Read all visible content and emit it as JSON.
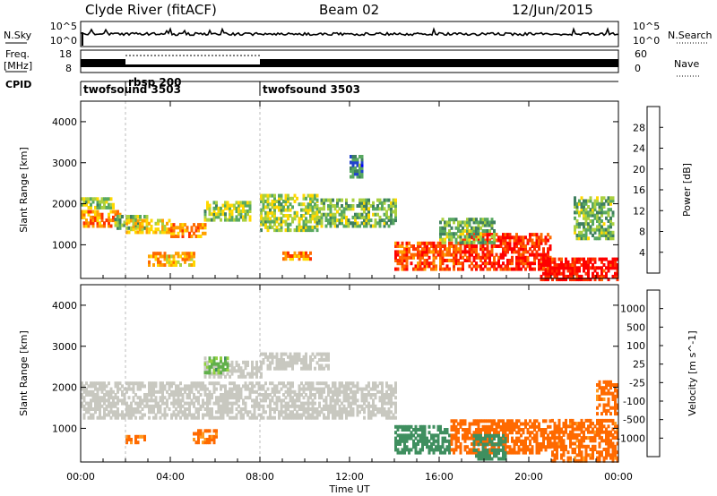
{
  "header": {
    "radar": "Clyde River (fitACF)",
    "beam": "Beam 02",
    "date": "12/Jun/2015"
  },
  "top_panels": {
    "nsky_label": "N.Sky",
    "nsky_ticks_left": [
      "10^5",
      "10^0"
    ],
    "nsearch_label": "N.Search",
    "nsearch_ticks_right": [
      "10^5",
      "10^0"
    ],
    "freq_label": "Freq.",
    "freq_unit": "[MHz]",
    "freq_ticks": [
      "18",
      "8"
    ],
    "nave_label": "Nave",
    "nave_ticks": [
      "60",
      "0"
    ],
    "cpid_label": "CPID",
    "cpid_segments": [
      {
        "name": "twofsound 3503",
        "start_h": 0,
        "end_h": 2
      },
      {
        "name": "rbsp 200",
        "start_h": 2,
        "end_h": 8
      },
      {
        "name": "twofsound 3503",
        "start_h": 8,
        "end_h": 24
      }
    ]
  },
  "chart_data": [
    {
      "type": "heatmap",
      "name": "Power",
      "xlabel": "Time UT",
      "ylabel": "Slant Range [km]",
      "x_range_hours": [
        0,
        24
      ],
      "ylim": [
        180,
        4500
      ],
      "yticks": [
        1000,
        2000,
        3000,
        4000
      ],
      "colorbar": {
        "label": "Power [dB]",
        "range": [
          0,
          32
        ],
        "ticks": [
          "4",
          "8",
          "12",
          "16",
          "20",
          "24",
          "28"
        ],
        "colors": [
          "#0000ff",
          "#2244cc",
          "#3f7f5f",
          "#58a860",
          "#aad040",
          "#ffd800",
          "#ffa000",
          "#ff6a00",
          "#ff3000",
          "#ff0000"
        ]
      },
      "regions": [
        {
          "t0": 0.0,
          "t1": 1.5,
          "r0": 1950,
          "r1": 2200,
          "level": 14
        },
        {
          "t0": 0.0,
          "t1": 1.8,
          "r0": 1500,
          "r1": 1900,
          "level": 22
        },
        {
          "t0": 1.5,
          "t1": 3.0,
          "r0": 1450,
          "r1": 1800,
          "level": 12
        },
        {
          "t0": 2.0,
          "t1": 4.0,
          "r0": 1350,
          "r1": 1650,
          "level": 18
        },
        {
          "t0": 4.0,
          "t1": 5.5,
          "r0": 1250,
          "r1": 1550,
          "level": 22
        },
        {
          "t0": 3.0,
          "t1": 5.0,
          "r0": 550,
          "r1": 900,
          "level": 20
        },
        {
          "t0": 5.5,
          "t1": 7.5,
          "r0": 1650,
          "r1": 2100,
          "level": 14
        },
        {
          "t0": 8.0,
          "t1": 10.5,
          "r0": 1400,
          "r1": 2300,
          "level": 14
        },
        {
          "t0": 9.0,
          "t1": 10.2,
          "r0": 700,
          "r1": 900,
          "level": 22
        },
        {
          "t0": 10.5,
          "t1": 14.0,
          "r0": 1500,
          "r1": 2200,
          "level": 12
        },
        {
          "t0": 12.0,
          "t1": 12.5,
          "r0": 2700,
          "r1": 3200,
          "level": 8
        },
        {
          "t0": 14.0,
          "t1": 17.0,
          "r0": 450,
          "r1": 1100,
          "level": 26
        },
        {
          "t0": 17.0,
          "t1": 21.0,
          "r0": 450,
          "r1": 1300,
          "level": 28
        },
        {
          "t0": 16.0,
          "t1": 18.5,
          "r0": 1100,
          "r1": 1700,
          "level": 12
        },
        {
          "t0": 20.5,
          "t1": 24.0,
          "r0": 200,
          "r1": 700,
          "level": 30
        },
        {
          "t0": 22.0,
          "t1": 23.8,
          "r0": 1200,
          "r1": 2200,
          "level": 12
        }
      ]
    },
    {
      "type": "heatmap",
      "name": "Velocity",
      "xlabel": "Time UT",
      "ylabel": "Slant Range [km]",
      "x_range_hours": [
        0,
        24
      ],
      "ylim": [
        180,
        4500
      ],
      "yticks": [
        1000,
        2000,
        3000,
        4000
      ],
      "xticks": [
        "00:00",
        "04:00",
        "08:00",
        "12:00",
        "16:00",
        "20:00",
        "00:00"
      ],
      "colorbar": {
        "label": "Velocity [m s^-1]",
        "ticks": [
          "1000",
          "500",
          "100",
          "25",
          "-25",
          "-100",
          "-500",
          "-1000"
        ],
        "colors": [
          "#1a3fbf",
          "#2c6aa8",
          "#3f8f5f",
          "#60b04a",
          "#8fd040",
          "#c8c8c0",
          "#ffc060",
          "#ff9a20",
          "#ff6a00",
          "#ff3000",
          "#ff0000"
        ]
      },
      "regions": [
        {
          "t0": 0.0,
          "t1": 14.0,
          "r0": 1300,
          "r1": 2200,
          "level": 0
        },
        {
          "t0": 5.5,
          "t1": 8.0,
          "r0": 2300,
          "r1": 2700,
          "level": 0
        },
        {
          "t0": 8.0,
          "t1": 11.0,
          "r0": 2500,
          "r1": 2900,
          "level": 0
        },
        {
          "t0": 5.5,
          "t1": 6.5,
          "r0": 2400,
          "r1": 2800,
          "level": 60
        },
        {
          "t0": 2.0,
          "t1": 3.0,
          "r0": 700,
          "r1": 900,
          "level": -150
        },
        {
          "t0": 5.0,
          "t1": 6.0,
          "r0": 700,
          "r1": 1000,
          "level": -150
        },
        {
          "t0": 14.0,
          "t1": 16.5,
          "r0": 450,
          "r1": 1100,
          "level": 300
        },
        {
          "t0": 16.5,
          "t1": 21.0,
          "r0": 450,
          "r1": 1250,
          "level": -300
        },
        {
          "t0": 17.5,
          "t1": 19.0,
          "r0": 300,
          "r1": 900,
          "level": 250
        },
        {
          "t0": 21.0,
          "t1": 24.0,
          "r0": 250,
          "r1": 1300,
          "level": -200
        },
        {
          "t0": 23.0,
          "t1": 24.0,
          "r0": 1400,
          "r1": 2200,
          "level": -200
        }
      ]
    }
  ]
}
